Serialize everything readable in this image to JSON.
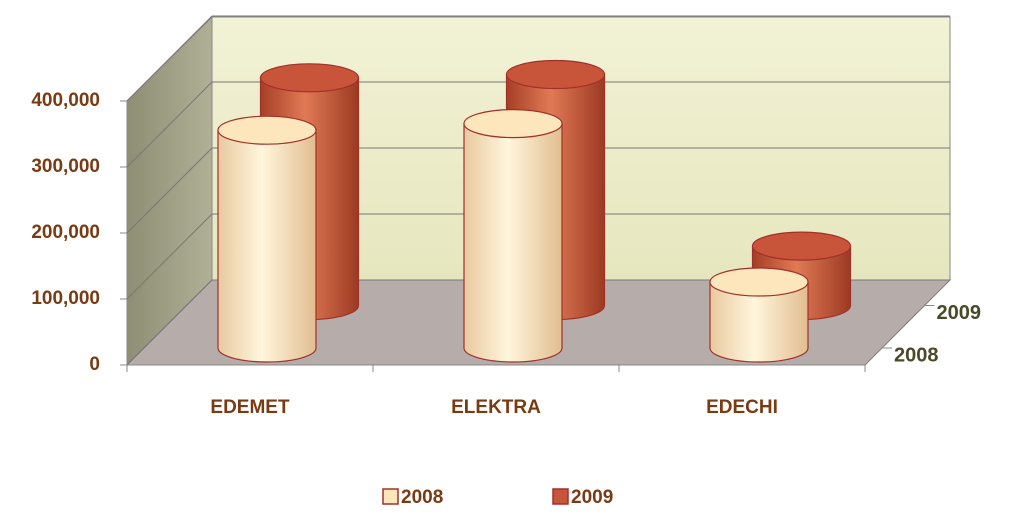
{
  "chart_data": {
    "type": "bar3d",
    "categories": [
      "EDEMET",
      "ELEKTRA",
      "EDECHI"
    ],
    "series": [
      {
        "name": "2008",
        "color": "#fde6bb",
        "values": [
          330000,
          340000,
          100000
        ]
      },
      {
        "name": "2009",
        "color": "#c8553a",
        "values": [
          345000,
          350000,
          90000
        ]
      }
    ],
    "ylim": [
      0,
      400000
    ],
    "yticks": [
      0,
      {
        "value": 100000,
        "label": "100,000"
      },
      {
        "value": 200000,
        "label": "200,000"
      },
      {
        "value": 300000,
        "label": "300,000"
      },
      {
        "value": 400000,
        "label": "400,000"
      }
    ],
    "grid": true,
    "legend": "bottom"
  }
}
